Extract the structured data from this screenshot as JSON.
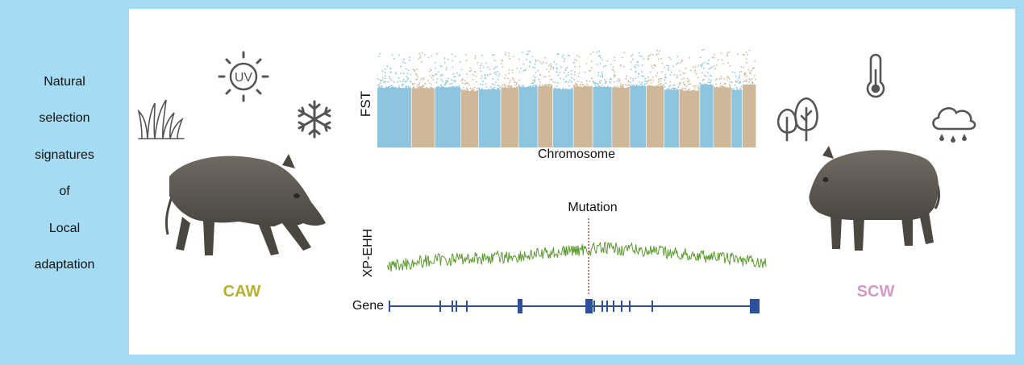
{
  "left_text": [
    "Natural",
    "selection",
    "signatures",
    "of",
    "Local",
    "adaptation"
  ],
  "fst": {
    "ylabel": "FST",
    "xlabel": "Chromosome"
  },
  "xpehh": {
    "ylabel": "XP-EHH",
    "marker_label": "Mutation"
  },
  "gene": {
    "label": "Gene"
  },
  "populations": {
    "left": {
      "name": "CAW",
      "color": "#b5b12e"
    },
    "right": {
      "name": "SCW",
      "color": "#d49ac6"
    }
  },
  "icons": {
    "left": [
      "grass-icon",
      "uv-sun-icon",
      "snowflake-icon"
    ],
    "right": [
      "thermometer-icon",
      "trees-icon",
      "rain-cloud-icon"
    ]
  },
  "colors": {
    "background": "#a6dcf3",
    "fst_blue": "#8ec5de",
    "fst_tan": "#cfb899",
    "xpehh_line": "#5a9a2e",
    "mutation_line": "#d9322a",
    "gene_line": "#2e4f9a",
    "icon": "#555555"
  }
}
